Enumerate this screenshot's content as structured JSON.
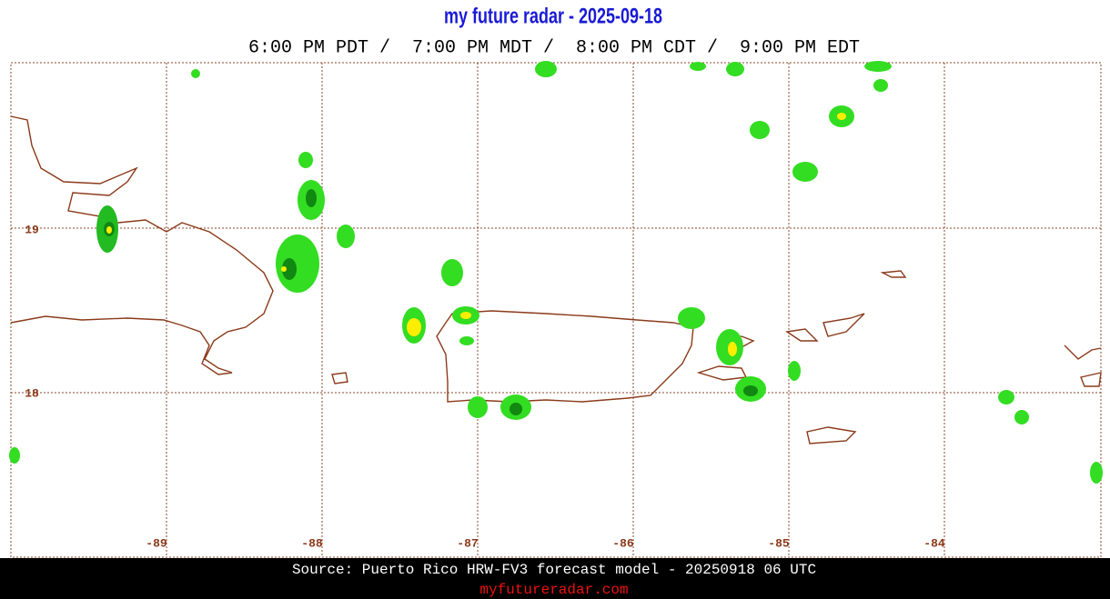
{
  "header": {
    "title": "my future radar - 2025-09-18",
    "times": "6:00 PM PDT /  7:00 PM MDT /  8:00 PM CDT /  9:00 PM EDT"
  },
  "map": {
    "lat_labels": [
      "19",
      "18"
    ],
    "lon_labels": [
      "-89",
      "-88",
      "-87",
      "-86",
      "-85",
      "-84"
    ]
  },
  "footer": {
    "source": "Source: Puerto Rico HRW-FV3 forecast model - 20250918 06 UTC",
    "site": "myfutureradar.com"
  }
}
